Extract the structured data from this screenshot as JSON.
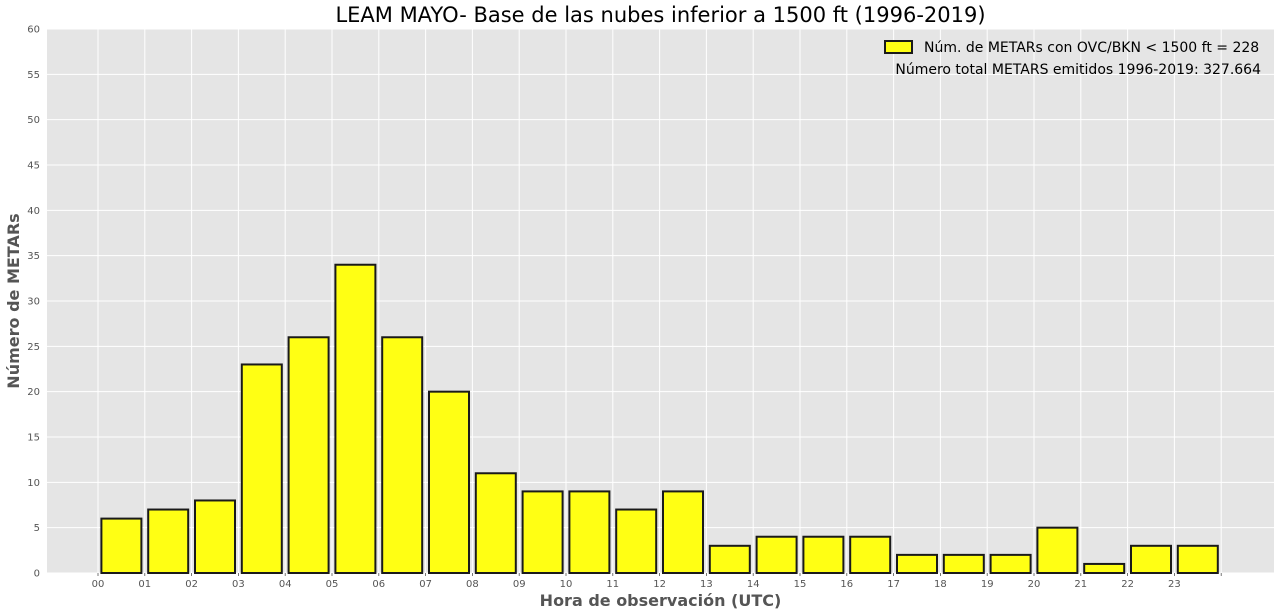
{
  "chart_data": {
    "type": "bar",
    "title": "LEAM MAYO- Base de las nubes inferior a 1500 ft (1996-2019)",
    "xlabel": "Hora de observación (UTC)",
    "ylabel": "Número de METARs",
    "categories": [
      "00",
      "01",
      "02",
      "03",
      "04",
      "05",
      "06",
      "07",
      "08",
      "09",
      "10",
      "11",
      "12",
      "13",
      "14",
      "15",
      "16",
      "17",
      "18",
      "19",
      "20",
      "21",
      "22",
      "23"
    ],
    "series": [
      {
        "name": "Núm. de METARs con OVC/BKN < 1500 ft = 228",
        "values": [
          6,
          7,
          8,
          23,
          26,
          34,
          26,
          20,
          11,
          9,
          9,
          7,
          9,
          3,
          4,
          4,
          4,
          2,
          2,
          2,
          5,
          1,
          3,
          3
        ]
      }
    ],
    "annotation": "Número total METARS emitidos 1996-2019: 327.664",
    "ylim": [
      0,
      60
    ],
    "yticks": [
      0,
      5,
      10,
      15,
      20,
      25,
      30,
      35,
      40,
      45,
      50,
      55,
      60
    ],
    "grid": true,
    "legend_position": "top-right",
    "colors": {
      "bar_fill": "#ffff14",
      "bar_edge": "#1a1a1a",
      "plot_background": "#e5e5e5",
      "grid": "#ffffff",
      "tick_text": "#555555"
    }
  }
}
